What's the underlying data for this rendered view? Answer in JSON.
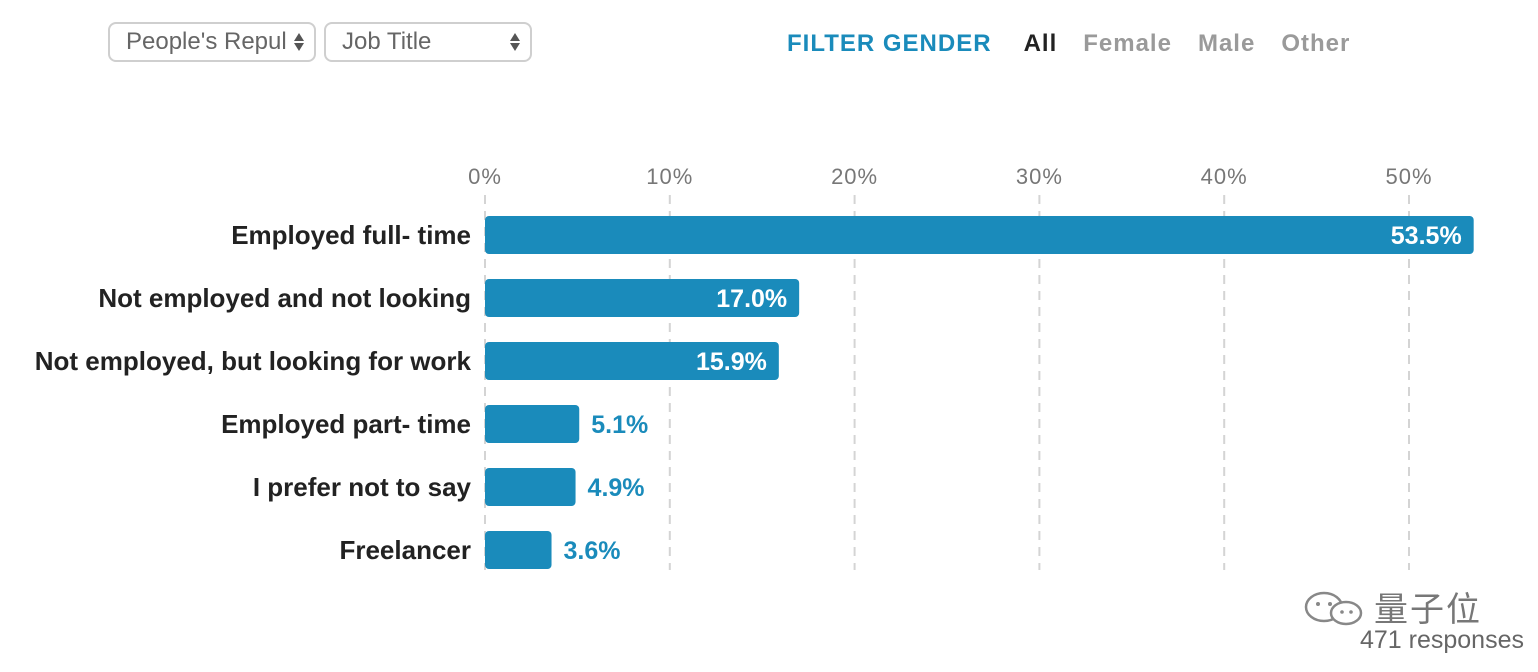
{
  "controls": {
    "country_select": "People's Repul",
    "job_select": "Job Title"
  },
  "filter": {
    "title": "FILTER GENDER",
    "options": [
      {
        "label": "All",
        "active": true
      },
      {
        "label": "Female",
        "active": false
      },
      {
        "label": "Male",
        "active": false
      },
      {
        "label": "Other",
        "active": false
      }
    ]
  },
  "chart_data": {
    "type": "bar",
    "orientation": "horizontal",
    "categories": [
      "Employed full- time",
      "Not employed and not looking",
      "Not employed, but looking for work",
      "Employed part- time",
      "I prefer not to say",
      "Freelancer"
    ],
    "values": [
      53.5,
      17.0,
      15.9,
      5.1,
      4.9,
      3.6
    ],
    "value_labels": [
      "53.5%",
      "17.0%",
      "15.9%",
      "5.1%",
      "4.9%",
      "3.6%"
    ],
    "xticks": [
      0,
      10,
      20,
      30,
      40,
      50
    ],
    "xtick_labels": [
      "0%",
      "10%",
      "20%",
      "30%",
      "40%",
      "50%"
    ],
    "xlim": [
      0,
      55
    ],
    "grid": true,
    "bar_color": "#1a8bbb"
  },
  "footer": {
    "watermark": "量子位",
    "responses": "471 responses"
  }
}
